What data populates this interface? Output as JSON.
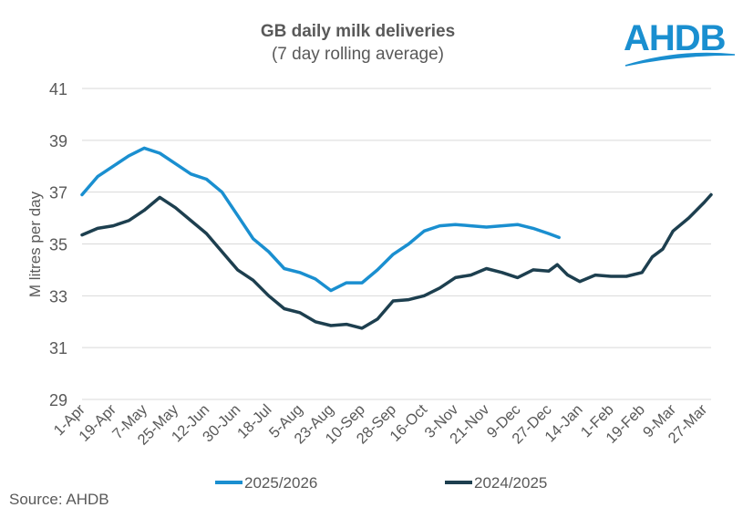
{
  "chart_data": {
    "type": "line",
    "title": "GB daily milk deliveries",
    "subtitle": "(7 day rolling average)",
    "ylabel": "M litres per day",
    "xlabel": "",
    "ylim": [
      29,
      41
    ],
    "yticks": [
      29,
      31,
      33,
      35,
      37,
      39,
      41
    ],
    "xlim": [
      "1-Apr",
      "31-Mar"
    ],
    "xticks": [
      "1-Apr",
      "19-Apr",
      "7-May",
      "25-May",
      "12-Jun",
      "30-Jun",
      "18-Jul",
      "5-Aug",
      "23-Aug",
      "10-Sep",
      "28-Sep",
      "16-Oct",
      "3-Nov",
      "21-Nov",
      "9-Dec",
      "27-Dec",
      "14-Jan",
      "1-Feb",
      "19-Feb",
      "9-Mar",
      "27-Mar"
    ],
    "grid": true,
    "legend": "bottom",
    "series": [
      {
        "name": "2025/2026",
        "color": "#1a8fd0",
        "points": [
          [
            "1-Apr",
            36.9
          ],
          [
            "10-Apr",
            37.6
          ],
          [
            "19-Apr",
            38.0
          ],
          [
            "28-Apr",
            38.4
          ],
          [
            "7-May",
            38.7
          ],
          [
            "16-May",
            38.5
          ],
          [
            "25-May",
            38.1
          ],
          [
            "3-Jun",
            37.7
          ],
          [
            "12-Jun",
            37.5
          ],
          [
            "21-Jun",
            37.0
          ],
          [
            "30-Jun",
            36.1
          ],
          [
            "9-Jul",
            35.2
          ],
          [
            "18-Jul",
            34.7
          ],
          [
            "27-Jul",
            34.05
          ],
          [
            "5-Aug",
            33.9
          ],
          [
            "14-Aug",
            33.65
          ],
          [
            "23-Aug",
            33.2
          ],
          [
            "1-Sep",
            33.5
          ],
          [
            "10-Sep",
            33.5
          ],
          [
            "19-Sep",
            34.0
          ],
          [
            "28-Sep",
            34.6
          ],
          [
            "7-Oct",
            35.0
          ],
          [
            "16-Oct",
            35.5
          ],
          [
            "25-Oct",
            35.7
          ],
          [
            "3-Nov",
            35.75
          ],
          [
            "12-Nov",
            35.7
          ],
          [
            "21-Nov",
            35.65
          ],
          [
            "30-Nov",
            35.7
          ],
          [
            "9-Dec",
            35.75
          ],
          [
            "18-Dec",
            35.6
          ],
          [
            "27-Dec",
            35.4
          ],
          [
            "2-Jan",
            35.25
          ]
        ]
      },
      {
        "name": "2024/2025",
        "color": "#1d3f4f",
        "points": [
          [
            "1-Apr",
            35.35
          ],
          [
            "10-Apr",
            35.6
          ],
          [
            "19-Apr",
            35.7
          ],
          [
            "28-Apr",
            35.9
          ],
          [
            "7-May",
            36.3
          ],
          [
            "16-May",
            36.8
          ],
          [
            "25-May",
            36.4
          ],
          [
            "3-Jun",
            35.9
          ],
          [
            "12-Jun",
            35.4
          ],
          [
            "21-Jun",
            34.7
          ],
          [
            "30-Jun",
            34.0
          ],
          [
            "9-Jul",
            33.6
          ],
          [
            "18-Jul",
            33.0
          ],
          [
            "27-Jul",
            32.5
          ],
          [
            "5-Aug",
            32.35
          ],
          [
            "14-Aug",
            32.0
          ],
          [
            "23-Aug",
            31.85
          ],
          [
            "1-Sep",
            31.9
          ],
          [
            "10-Sep",
            31.75
          ],
          [
            "19-Sep",
            32.1
          ],
          [
            "28-Sep",
            32.8
          ],
          [
            "7-Oct",
            32.85
          ],
          [
            "16-Oct",
            33.0
          ],
          [
            "25-Oct",
            33.3
          ],
          [
            "3-Nov",
            33.7
          ],
          [
            "12-Nov",
            33.8
          ],
          [
            "21-Nov",
            34.05
          ],
          [
            "30-Nov",
            33.9
          ],
          [
            "9-Dec",
            33.7
          ],
          [
            "18-Dec",
            34.0
          ],
          [
            "27-Dec",
            33.95
          ],
          [
            "1-Jan",
            34.2
          ],
          [
            "7-Jan",
            33.8
          ],
          [
            "14-Jan",
            33.55
          ],
          [
            "23-Jan",
            33.8
          ],
          [
            "1-Feb",
            33.75
          ],
          [
            "10-Feb",
            33.75
          ],
          [
            "19-Feb",
            33.9
          ],
          [
            "25-Feb",
            34.5
          ],
          [
            "3-Mar",
            34.8
          ],
          [
            "9-Mar",
            35.5
          ],
          [
            "18-Mar",
            36.0
          ],
          [
            "27-Mar",
            36.6
          ],
          [
            "31-Mar",
            36.9
          ]
        ]
      }
    ]
  },
  "source": "Source: AHDB",
  "logo": "AHDB",
  "colors": {
    "accent": "#1a8fd0",
    "dark": "#1d3f4f",
    "grid": "#d9d9d9"
  }
}
